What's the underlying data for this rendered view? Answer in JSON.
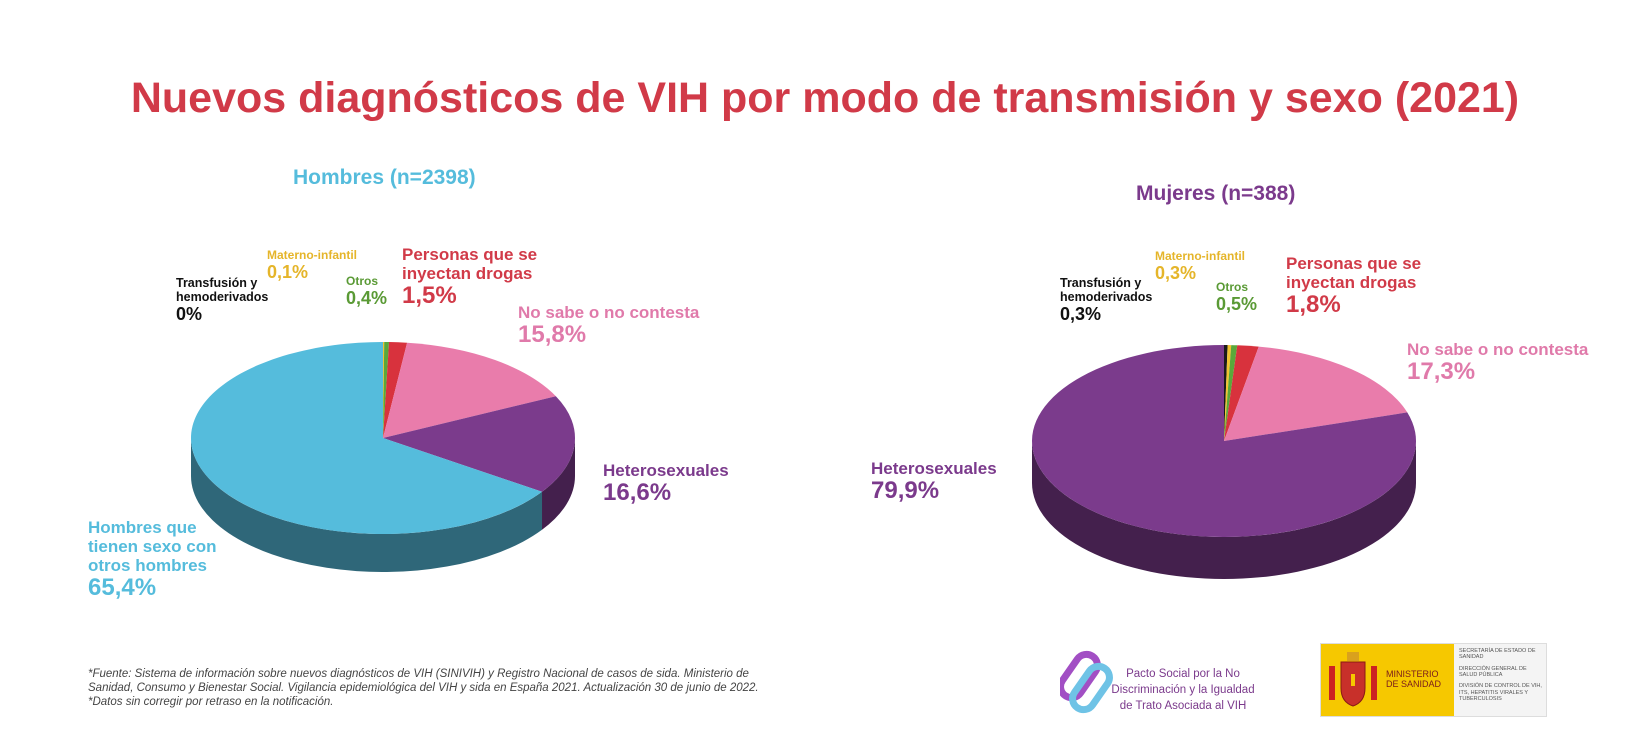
{
  "title": "Nuevos diagnósticos de VIH por modo de transmisión y sexo (2021)",
  "chart_data": [
    {
      "type": "pie",
      "title": "Hombres  (n=2398)",
      "title_color": "#55bcdc",
      "slices": [
        {
          "name": "Transfusión y hemoderivados",
          "label_lines": [
            "Transfusión y",
            "hemoderivados"
          ],
          "value": 0.0,
          "pct": "0%",
          "color": "#1a1a1a",
          "label_color": "#111111"
        },
        {
          "name": "Materno-infantil",
          "label_lines": [
            "Materno-infantil"
          ],
          "value": 0.1,
          "pct": "0,1%",
          "color": "#f2c230",
          "label_color": "#e5b52a"
        },
        {
          "name": "Otros",
          "label_lines": [
            "Otros"
          ],
          "value": 0.4,
          "pct": "0,4%",
          "color": "#5aa83a",
          "label_color": "#5a9a35"
        },
        {
          "name": "Personas que se inyectan drogas",
          "label_lines": [
            "Personas que se",
            "inyectan drogas"
          ],
          "value": 1.5,
          "pct": "1,5%",
          "color": "#d8323d",
          "label_color": "#d13a48"
        },
        {
          "name": "No sabe o no contesta",
          "label_lines": [
            "No sabe o no contesta"
          ],
          "value": 15.8,
          "pct": "15,8%",
          "color": "#e97cab",
          "label_color": "#e07aaa"
        },
        {
          "name": "Heterosexuales",
          "label_lines": [
            "Heterosexuales"
          ],
          "value": 16.6,
          "pct": "16,6%",
          "color": "#7b3b8c",
          "label_color": "#7b3a8c"
        },
        {
          "name": "Hombres que tienen sexo con otros hombres",
          "label_lines": [
            "Hombres que",
            "tienen sexo con",
            "otros hombres"
          ],
          "value": 65.4,
          "pct": "65,4%",
          "color": "#55bcdc",
          "label_color": "#55bcdc"
        }
      ]
    },
    {
      "type": "pie",
      "title": "Mujeres  (n=388)",
      "title_color": "#7b3a8c",
      "slices": [
        {
          "name": "Transfusión y hemoderivados",
          "label_lines": [
            "Transfusión y",
            "hemoderivados"
          ],
          "value": 0.3,
          "pct": "0,3%",
          "color": "#1a1a1a",
          "label_color": "#111111"
        },
        {
          "name": "Materno-infantil",
          "label_lines": [
            "Materno-infantil"
          ],
          "value": 0.3,
          "pct": "0,3%",
          "color": "#f2c230",
          "label_color": "#e5b52a"
        },
        {
          "name": "Otros",
          "label_lines": [
            "Otros"
          ],
          "value": 0.5,
          "pct": "0,5%",
          "color": "#5aa83a",
          "label_color": "#5a9a35"
        },
        {
          "name": "Personas que se inyectan drogas",
          "label_lines": [
            "Personas que se",
            "inyectan drogas"
          ],
          "value": 1.8,
          "pct": "1,8%",
          "color": "#d8323d",
          "label_color": "#d13a48"
        },
        {
          "name": "No sabe o no contesta",
          "label_lines": [
            "No sabe o no contesta"
          ],
          "value": 17.3,
          "pct": "17,3%",
          "color": "#e97cab",
          "label_color": "#e07aaa"
        },
        {
          "name": "Heterosexuales",
          "label_lines": [
            "Heterosexuales"
          ],
          "value": 79.9,
          "pct": "79,9%",
          "color": "#7b3b8c",
          "label_color": "#7b3a8c"
        }
      ]
    }
  ],
  "footnote": {
    "line1": "*Fuente: Sistema de información sobre nuevos diagnósticos de VIH (SINIVIH) y Registro Nacional de casos de sida. Ministerio de",
    "line2": "Sanidad, Consumo y Bienestar Social. Vigilancia epidemiológica del VIH y sida en España 2021. Actualización 30 de junio de 2022.",
    "line3": "*Datos sin corregir por retraso en la notificación."
  },
  "logos": {
    "pacto": {
      "line1": "Pacto Social por la No",
      "line2": "Discriminación y la Igualdad",
      "line3": "de Trato Asociada al VIH"
    },
    "ministerio": {
      "name_line1": "MINISTERIO",
      "name_line2": "DE SANIDAD",
      "right1": "SECRETARÍA DE ESTADO DE SANIDAD",
      "right2": "DIRECCIÓN GENERAL DE SALUD PÚBLICA",
      "right3": "DIVISIÓN DE CONTROL DE VIH, ITS, HEPATITIS VIRALES Y TUBERCULOSIS"
    }
  }
}
